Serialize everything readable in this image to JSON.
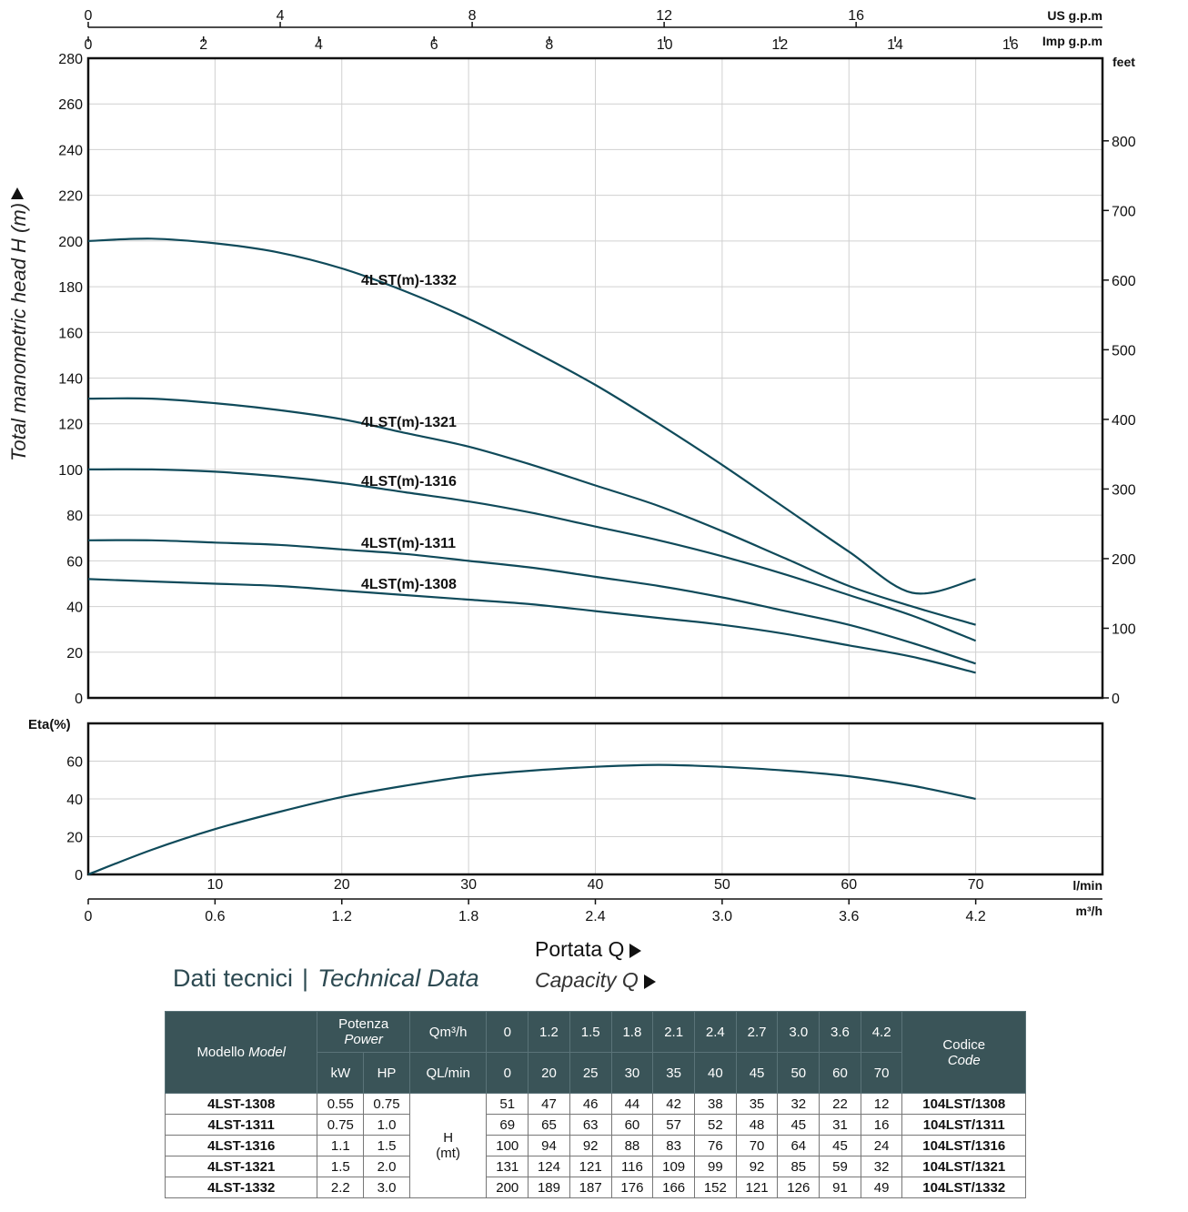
{
  "chart_data": [
    {
      "type": "line",
      "ylabel": "Total manometric head H (m)",
      "right_axis_label": "feet",
      "right_ticks": [
        "0",
        "100",
        "200",
        "300",
        "400",
        "500",
        "600",
        "700",
        "800"
      ],
      "top_axis_us_label": "US g.p.m",
      "top_ticks_us": [
        "0",
        "4",
        "8",
        "12",
        "16"
      ],
      "top_axis_imp_label": "Imp g.p.m",
      "top_ticks_imp": [
        "0",
        "2",
        "4",
        "6",
        "8",
        "10",
        "12",
        "14",
        "16"
      ],
      "ylim": [
        0,
        280
      ],
      "y_ticks": [
        "0",
        "20",
        "40",
        "60",
        "80",
        "100",
        "120",
        "140",
        "160",
        "180",
        "200",
        "220",
        "240",
        "260",
        "280"
      ],
      "x_unit": "l/min",
      "xlim": [
        0,
        80
      ],
      "series": [
        {
          "name": "4LST(m)-1332",
          "x": [
            0,
            5,
            10,
            15,
            20,
            25,
            30,
            35,
            40,
            45,
            50,
            55,
            60,
            65,
            70
          ],
          "y": [
            200,
            201,
            199,
            195,
            188,
            178,
            166,
            152,
            137,
            120,
            102,
            83,
            64,
            46,
            52
          ]
        },
        {
          "name": "4LST(m)-1321",
          "x": [
            0,
            5,
            10,
            15,
            20,
            25,
            30,
            35,
            40,
            45,
            50,
            55,
            60,
            65,
            70
          ],
          "y": [
            131,
            131,
            129,
            126,
            122,
            116,
            110,
            102,
            93,
            84,
            73,
            61,
            49,
            40,
            32
          ]
        },
        {
          "name": "4LST(m)-1316",
          "x": [
            0,
            5,
            10,
            15,
            20,
            25,
            30,
            35,
            40,
            45,
            50,
            55,
            60,
            65,
            70
          ],
          "y": [
            100,
            100,
            99,
            97,
            94,
            90,
            86,
            81,
            75,
            69,
            62,
            54,
            45,
            36,
            25
          ]
        },
        {
          "name": "4LST(m)-1311",
          "x": [
            0,
            5,
            10,
            15,
            20,
            25,
            30,
            35,
            40,
            45,
            50,
            55,
            60,
            65,
            70
          ],
          "y": [
            69,
            69,
            68,
            67,
            65,
            63,
            60,
            57,
            53,
            49,
            44,
            38,
            32,
            24,
            15
          ]
        },
        {
          "name": "4LST(m)-1308",
          "x": [
            0,
            5,
            10,
            15,
            20,
            25,
            30,
            35,
            40,
            45,
            50,
            55,
            60,
            65,
            70
          ],
          "y": [
            52,
            51,
            50,
            49,
            47,
            45,
            43,
            41,
            38,
            35,
            32,
            28,
            23,
            18,
            11
          ]
        }
      ]
    },
    {
      "type": "line",
      "ylabel": "Eta(%)",
      "ylim": [
        0,
        80
      ],
      "y_ticks": [
        "0",
        "20",
        "40",
        "60"
      ],
      "x_unit": "l/min",
      "x_ticks": [
        "10",
        "20",
        "30",
        "40",
        "50",
        "60",
        "70"
      ],
      "xlim": [
        0,
        80
      ],
      "x2_unit": "m³/h",
      "x2_ticks": [
        "0",
        "0.6",
        "1.2",
        "1.8",
        "2.4",
        "3.0",
        "3.6",
        "4.2"
      ],
      "series": [
        {
          "name": "",
          "x": [
            0,
            5,
            10,
            15,
            20,
            25,
            30,
            35,
            40,
            45,
            50,
            55,
            60,
            65,
            70
          ],
          "y": [
            0,
            13,
            24,
            33,
            41,
            47,
            52,
            55,
            57,
            58,
            57,
            55,
            52,
            47,
            40
          ]
        }
      ]
    }
  ],
  "captions": {
    "portata": "Portata Q",
    "capacity": "Capacity Q",
    "dati_it": "Dati tecnici",
    "separator": "|",
    "dati_en": "Technical Data"
  },
  "table": {
    "model_it": "Modello",
    "model_en": "Model",
    "power_it": "Potenza",
    "power_en": "Power",
    "kw": "kW",
    "hp": "HP",
    "qm3h": "Qm³/h",
    "qlmin": "QL/min",
    "code_it": "Codice",
    "code_en": "Code",
    "h_label": "H",
    "h_unit": "(mt)",
    "qm3h_values": [
      "0",
      "1.2",
      "1.5",
      "1.8",
      "2.1",
      "2.4",
      "2.7",
      "3.0",
      "3.6",
      "4.2"
    ],
    "qlmin_values": [
      "0",
      "20",
      "25",
      "30",
      "35",
      "40",
      "45",
      "50",
      "60",
      "70"
    ],
    "rows": [
      {
        "model": "4LST-1308",
        "kw": "0.55",
        "hp": "0.75",
        "h": [
          "51",
          "47",
          "46",
          "44",
          "42",
          "38",
          "35",
          "32",
          "22",
          "12"
        ],
        "code": "104LST/1308"
      },
      {
        "model": "4LST-1311",
        "kw": "0.75",
        "hp": "1.0",
        "h": [
          "69",
          "65",
          "63",
          "60",
          "57",
          "52",
          "48",
          "45",
          "31",
          "16"
        ],
        "code": "104LST/1311"
      },
      {
        "model": "4LST-1316",
        "kw": "1.1",
        "hp": "1.5",
        "h": [
          "100",
          "94",
          "92",
          "88",
          "83",
          "76",
          "70",
          "64",
          "45",
          "24"
        ],
        "code": "104LST/1316"
      },
      {
        "model": "4LST-1321",
        "kw": "1.5",
        "hp": "2.0",
        "h": [
          "131",
          "124",
          "121",
          "116",
          "109",
          "99",
          "92",
          "85",
          "59",
          "32"
        ],
        "code": "104LST/1321"
      },
      {
        "model": "4LST-1332",
        "kw": "2.2",
        "hp": "3.0",
        "h": [
          "200",
          "189",
          "187",
          "176",
          "166",
          "152",
          "121",
          "126",
          "91",
          "49"
        ],
        "code": "104LST/1332"
      }
    ]
  },
  "colors": {
    "curve": "#0f4a5a",
    "grid": "#d0d0d0",
    "header": "#3a5458",
    "caption": "#2d4a52"
  }
}
